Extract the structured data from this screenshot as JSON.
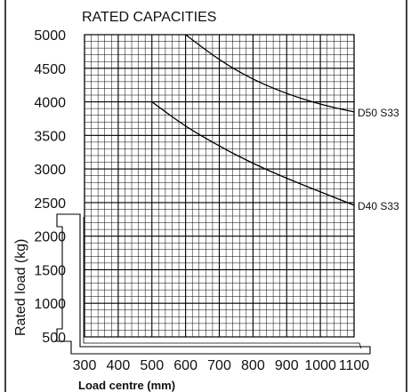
{
  "chart_data": {
    "type": "line",
    "title": "RATED CAPACITIES",
    "xlabel": "Load centre  (mm)",
    "ylabel": "Rated load  (kg)",
    "xlim": [
      300,
      1100
    ],
    "ylim": [
      500,
      5000
    ],
    "x_ticks": [
      "300",
      "400",
      "500",
      "600",
      "700",
      "800",
      "900",
      "1000",
      "1100"
    ],
    "y_ticks": [
      "5000",
      "4500",
      "4000",
      "3500",
      "3000",
      "2500",
      "2000",
      "1500",
      "1000",
      "500"
    ],
    "grid": true,
    "series": [
      {
        "name": "D50 S33",
        "x": [
          600,
          700,
          800,
          900,
          1000,
          1100
        ],
        "y": [
          5000,
          4620,
          4330,
          4120,
          3960,
          3850
        ]
      },
      {
        "name": "D40 S33",
        "x": [
          500,
          600,
          700,
          800,
          900,
          1000,
          1100
        ],
        "y": [
          4000,
          3630,
          3340,
          3080,
          2860,
          2660,
          2460
        ]
      }
    ]
  }
}
